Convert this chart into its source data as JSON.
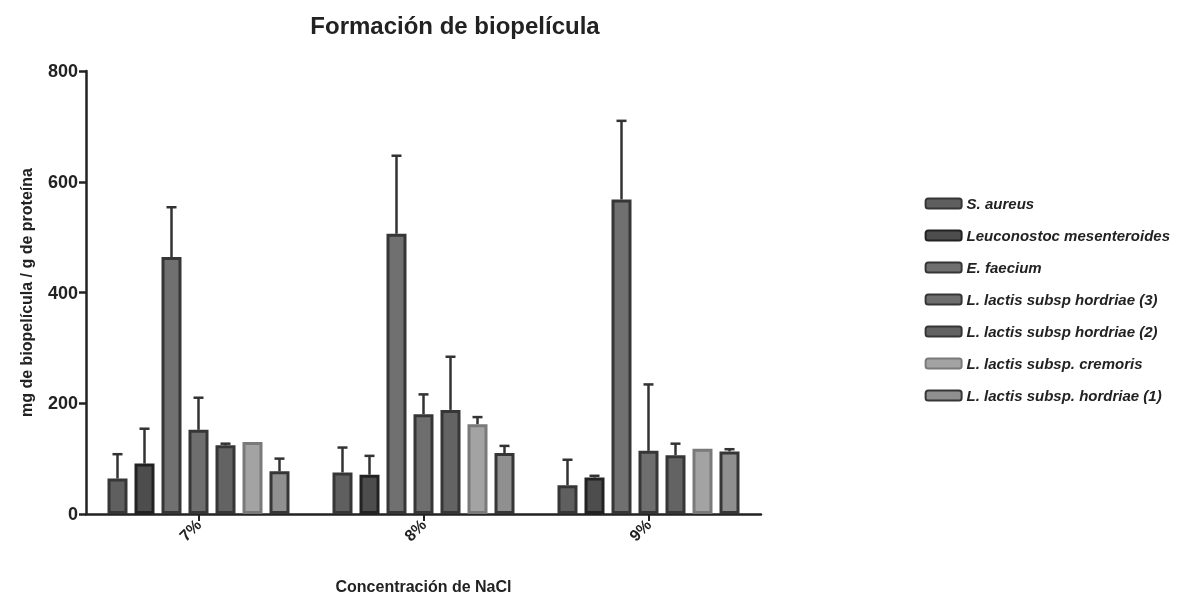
{
  "chart_data": {
    "type": "bar",
    "title": "Formación de biopelícula",
    "xlabel": "Concentración de NaCl",
    "ylabel": "mg de biopelícula / g de proteína",
    "categories": [
      "7%",
      "8%",
      "9%"
    ],
    "series": [
      {
        "name": "S. aureus",
        "color": "#5f5f5f",
        "values": [
          64,
          75,
          52
        ],
        "errors": [
          [
            64,
            108
          ],
          [
            75,
            120
          ],
          [
            52,
            98
          ]
        ]
      },
      {
        "name": "Leuconostoc mesenteroides",
        "color": "#4d4d4d",
        "values": [
          91,
          71,
          66
        ],
        "errors": [
          [
            91,
            154
          ],
          [
            71,
            105
          ],
          [
            66,
            69
          ]
        ]
      },
      {
        "name": "E. faecium",
        "color": "#707070",
        "values": [
          464,
          506,
          568
        ],
        "errors": [
          [
            464,
            554
          ],
          [
            506,
            647
          ],
          [
            568,
            710
          ]
        ]
      },
      {
        "name": "L. lactis subsp hordriae (3)",
        "color": "#6e6e6e",
        "values": [
          152,
          180,
          114
        ],
        "errors": [
          [
            152,
            210
          ],
          [
            180,
            216
          ],
          [
            114,
            234
          ]
        ]
      },
      {
        "name": "L. lactis subsp hordriae (2)",
        "color": "#636363",
        "values": [
          124,
          188,
          106
        ],
        "errors": [
          [
            124,
            127
          ],
          [
            188,
            284
          ],
          [
            106,
            127
          ]
        ]
      },
      {
        "name": "L. lactis subsp. cremoris",
        "color": "#a3a3a3",
        "values": [
          130,
          162,
          118
        ],
        "errors": [
          null,
          [
            162,
            175
          ],
          null
        ]
      },
      {
        "name": "L. lactis subsp. hordriae (1)",
        "color": "#8f8f8f",
        "values": [
          77,
          110,
          113
        ],
        "errors": [
          [
            77,
            100
          ],
          [
            110,
            123
          ],
          [
            113,
            117
          ]
        ]
      }
    ],
    "ylim": [
      0,
      800
    ],
    "yticks": [
      0,
      200,
      400,
      600,
      800
    ],
    "grid": false,
    "legend": "right"
  }
}
